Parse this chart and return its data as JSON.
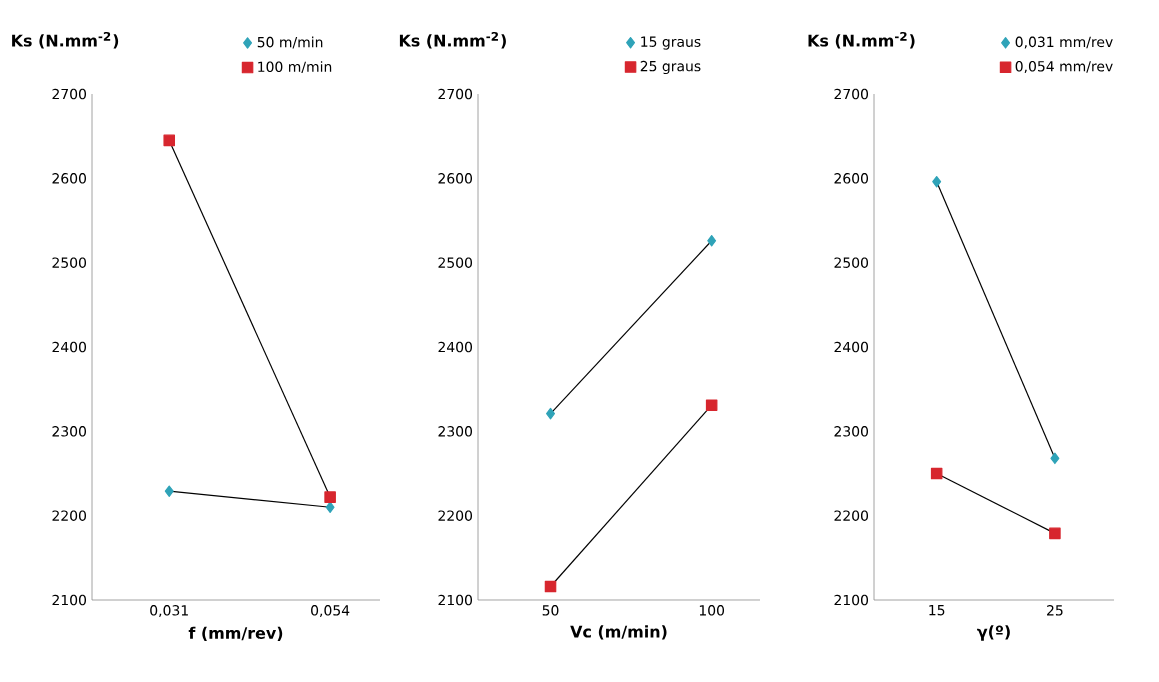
{
  "chart_data": [
    {
      "type": "line",
      "ylabel": "**Ks (N.mm$^{-2}$)**",
      "xlabel": "**f (mm/rev)**",
      "categories": [
        "0,031",
        "0,054"
      ],
      "ylim": [
        2100,
        2700
      ],
      "yticks": [
        2100,
        2200,
        2300,
        2400,
        2500,
        2600,
        2700
      ],
      "legend": "top right",
      "grid": false,
      "series": [
        {
          "name": "50 m/min",
          "color": "#2fa3b8",
          "marker": "diamond",
          "values": [
            2229,
            2210
          ]
        },
        {
          "name": "100 m/min",
          "color": "#d7262e",
          "marker": "square",
          "values": [
            2645,
            2222
          ]
        }
      ]
    },
    {
      "type": "line",
      "ylabel": "**Ks (N.mm$^{-2}$)**",
      "xlabel": "**Vc (m/min)**",
      "categories": [
        "50",
        "100"
      ],
      "ylim": [
        2100,
        2700
      ],
      "yticks": [
        2100,
        2200,
        2300,
        2400,
        2500,
        2600,
        2700
      ],
      "legend": "top right",
      "grid": false,
      "series": [
        {
          "name": "15 graus",
          "color": "#2fa3b8",
          "marker": "diamond",
          "values": [
            2321,
            2526
          ]
        },
        {
          "name": "25 graus",
          "color": "#d7262e",
          "marker": "square",
          "values": [
            2116,
            2331
          ]
        }
      ]
    },
    {
      "type": "line",
      "ylabel": "**Ks (N.mm$^{-2}$)**",
      "xlabel": "**γ(º)**",
      "categories": [
        "15",
        "25"
      ],
      "ylim": [
        2100,
        2700
      ],
      "yticks": [
        2100,
        2200,
        2300,
        2400,
        2500,
        2600,
        2700
      ],
      "legend": "top right",
      "grid": false,
      "series": [
        {
          "name": "0,031 mm/rev",
          "color": "#2fa3b8",
          "marker": "diamond",
          "values": [
            2596,
            2268
          ]
        },
        {
          "name": "0,054 mm/rev",
          "color": "#d7262e",
          "marker": "square",
          "values": [
            2250,
            2179
          ]
        }
      ]
    }
  ]
}
